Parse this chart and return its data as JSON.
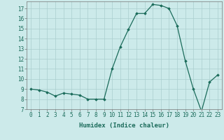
{
  "x": [
    0,
    1,
    2,
    3,
    4,
    5,
    6,
    7,
    8,
    9,
    10,
    11,
    12,
    13,
    14,
    15,
    16,
    17,
    18,
    19,
    20,
    21,
    22,
    23
  ],
  "y": [
    9.0,
    8.9,
    8.7,
    8.3,
    8.6,
    8.5,
    8.4,
    8.0,
    8.0,
    8.0,
    11.0,
    13.2,
    14.9,
    16.5,
    16.5,
    17.4,
    17.3,
    17.0,
    15.3,
    11.8,
    9.0,
    6.8,
    9.7,
    10.4
  ],
  "xlabel": "Humidex (Indice chaleur)",
  "ylim": [
    7,
    17.7
  ],
  "xlim": [
    -0.5,
    23.5
  ],
  "yticks": [
    7,
    8,
    9,
    10,
    11,
    12,
    13,
    14,
    15,
    16,
    17
  ],
  "xticks": [
    0,
    1,
    2,
    3,
    4,
    5,
    6,
    7,
    8,
    9,
    10,
    11,
    12,
    13,
    14,
    15,
    16,
    17,
    18,
    19,
    20,
    21,
    22,
    23
  ],
  "line_color": "#1a6b5a",
  "marker": "D",
  "marker_size": 1.8,
  "bg_color": "#cceaea",
  "grid_color": "#aacece",
  "axes_color": "#777777",
  "label_color": "#1a6b5a",
  "tick_fontsize": 5.5,
  "xlabel_fontsize": 6.5
}
